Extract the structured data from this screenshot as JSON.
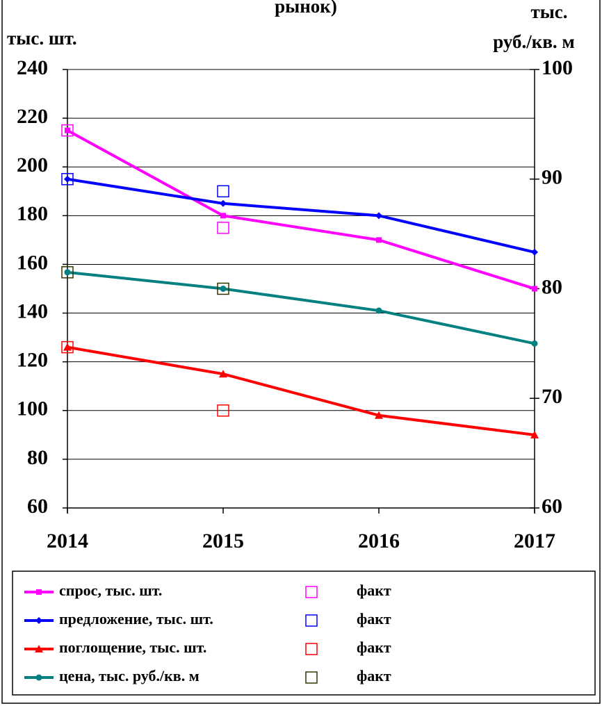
{
  "chart_data": {
    "type": "line",
    "title": "рынок)",
    "ylabel": "тыс. шт.",
    "y2label": [
      "тыс.",
      "руб./кв. м"
    ],
    "categories": [
      "2014",
      "2015",
      "2016",
      "2017"
    ],
    "ylim": [
      60,
      240
    ],
    "yticks": [
      60,
      80,
      100,
      120,
      140,
      160,
      180,
      200,
      220,
      240
    ],
    "y2lim": [
      60,
      100
    ],
    "y2ticks": [
      60,
      70,
      80,
      90,
      100
    ],
    "grid": true,
    "series": [
      {
        "name": "спрос, тыс. шт.",
        "color": "#ff00ff",
        "marker": "square",
        "values": [
          215,
          180,
          170,
          150
        ]
      },
      {
        "name": "факт",
        "color": "#ff00ff",
        "marker": "open-square",
        "show_line": false,
        "values": [
          215,
          175,
          null,
          null
        ]
      },
      {
        "name": "предложение, тыс. шт.",
        "color": "#0000ff",
        "marker": "diamond",
        "values": [
          195,
          185,
          180,
          165
        ]
      },
      {
        "name": "факт",
        "color": "#0000ff",
        "marker": "open-square",
        "show_line": false,
        "values": [
          195,
          190,
          null,
          null
        ]
      },
      {
        "name": "поглощение, тыс. шт.",
        "color": "#ff0000",
        "marker": "triangle",
        "values": [
          126,
          115,
          98,
          90
        ]
      },
      {
        "name": "факт",
        "color": "#ff0000",
        "marker": "open-square",
        "show_line": false,
        "values": [
          126,
          100,
          null,
          null
        ]
      },
      {
        "name": "цена, тыс. руб./кв. м",
        "color": "#008080",
        "marker": "circle",
        "axis": "y2",
        "values": [
          81.5,
          80,
          78,
          75
        ]
      },
      {
        "name": "факт",
        "color": "#333300",
        "marker": "open-square",
        "show_line": false,
        "axis": "y2",
        "values": [
          81.5,
          80,
          null,
          null
        ]
      }
    ]
  }
}
